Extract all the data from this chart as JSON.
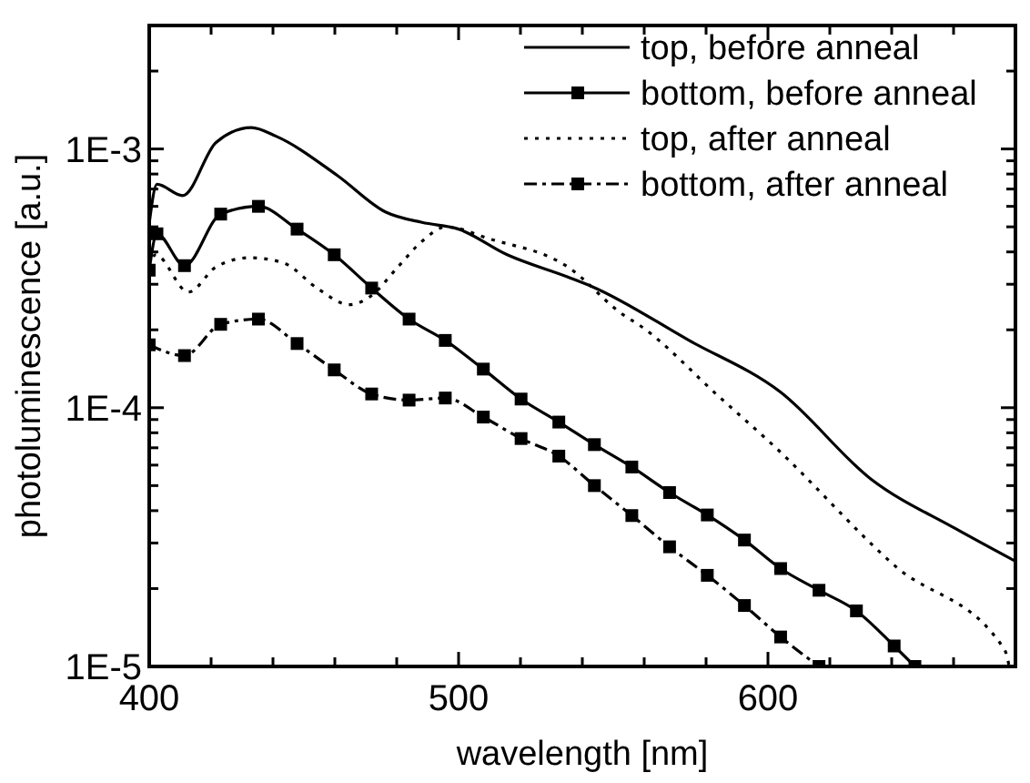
{
  "chart_data": {
    "type": "line",
    "xlabel": "wavelength [nm]",
    "ylabel": "photoluminescence [a.u.]",
    "log": "y",
    "grid": false,
    "legend": "top right",
    "xlim": [
      400,
      680
    ],
    "ylim": [
      1e-05,
      0.003
    ],
    "xticks": [
      400,
      {
        "value": 420,
        "label": null
      },
      {
        "value": 440,
        "label": null
      },
      {
        "value": 460,
        "label": null
      },
      {
        "value": 480,
        "label": null
      },
      500,
      {
        "value": 520,
        "label": null
      },
      {
        "value": 540,
        "label": null
      },
      {
        "value": 560,
        "label": null
      },
      {
        "value": 580,
        "label": null
      },
      600,
      {
        "value": 620,
        "label": null
      },
      {
        "value": 640,
        "label": null
      },
      {
        "value": 660,
        "label": null
      }
    ],
    "yticks": [
      {
        "value": 1e-05,
        "label": "1E-5"
      },
      {
        "value": 2e-05,
        "label": null
      },
      {
        "value": 3e-05,
        "label": null
      },
      {
        "value": 4e-05,
        "label": null
      },
      {
        "value": 5e-05,
        "label": null
      },
      {
        "value": 6e-05,
        "label": null
      },
      {
        "value": 7e-05,
        "label": null
      },
      {
        "value": 8e-05,
        "label": null
      },
      {
        "value": 9e-05,
        "label": null
      },
      {
        "value": 0.0001,
        "label": "1E-4"
      },
      {
        "value": 0.0002,
        "label": null
      },
      {
        "value": 0.0003,
        "label": null
      },
      {
        "value": 0.0004,
        "label": null
      },
      {
        "value": 0.0005,
        "label": null
      },
      {
        "value": 0.0006,
        "label": null
      },
      {
        "value": 0.0007,
        "label": null
      },
      {
        "value": 0.0008,
        "label": null
      },
      {
        "value": 0.0009,
        "label": null
      },
      {
        "value": 0.001,
        "label": "1E-3"
      },
      {
        "value": 0.002,
        "label": null
      },
      {
        "value": 0.003,
        "label": null
      }
    ],
    "series": [
      {
        "name": "top, before anneal",
        "color": "#000000",
        "line_style": "solid",
        "marker": "none",
        "x": [
          400,
          402.5,
          410.8,
          421.6,
          433,
          441,
          460.8,
          476.5,
          488.2,
          500,
          515.7,
          535.3,
          543.1,
          574.5,
          604,
          633.3,
          660.8,
          680
        ],
        "values": [
          0.000515,
          0.00073,
          0.00066,
          0.00106,
          0.00121,
          0.00112,
          0.00079,
          0.00057,
          0.00052,
          0.00049,
          0.00039,
          0.00032,
          0.000294,
          0.000182,
          0.000115,
          5.3e-05,
          3.4e-05,
          2.55e-05
        ]
      },
      {
        "name": "bottom, before anneal",
        "color": "#000000",
        "line_style": "solid",
        "marker": "square",
        "x": [
          400,
          402.5,
          411.4,
          423.1,
          435.3,
          447.8,
          459.8,
          471.9,
          484,
          495.7,
          508,
          520.2,
          532.4,
          543.9,
          556,
          568.2,
          580.4,
          592.4,
          604.1,
          616.5,
          628.6,
          640.8,
          647.5
        ],
        "values": [
          0.00034,
          0.00047,
          0.000354,
          0.00056,
          0.0006,
          0.00049,
          0.00039,
          0.00029,
          0.00022,
          0.000182,
          0.000141,
          0.000108,
          8.8e-05,
          7.2e-05,
          5.9e-05,
          4.7e-05,
          3.85e-05,
          3.08e-05,
          2.39e-05,
          1.97e-05,
          1.64e-05,
          1.2e-05,
          1e-05
        ]
      },
      {
        "name": "top, after anneal",
        "color": "#000000",
        "line_style": "dotted",
        "marker": "none",
        "x": [
          400,
          402,
          412.7,
          421.6,
          432.4,
          443.1,
          454.9,
          464.7,
          471.6,
          480.4,
          488.2,
          496,
          509.8,
          535.3,
          552.9,
          558.8,
          584.3,
          602,
          641.2,
          676.5,
          678
        ],
        "values": [
          0.00035,
          0.00039,
          0.00028,
          0.00035,
          0.00038,
          0.000364,
          0.000286,
          0.00025,
          0.00027,
          0.00035,
          0.00044,
          0.0005,
          0.00045,
          0.00035,
          0.00023,
          0.000207,
          0.00011,
          7.1e-05,
          2.44e-05,
          1.16e-05,
          1e-05
        ]
      },
      {
        "name": "bottom, after anneal",
        "color": "#000000",
        "line_style": "dashed",
        "marker": "square",
        "x": [
          400,
          411.4,
          423.1,
          435.3,
          447.8,
          459.8,
          471.9,
          484,
          495.7,
          508,
          520.2,
          532.4,
          543.9,
          556,
          568.2,
          580.4,
          592.4,
          604.1,
          616.5
        ],
        "values": [
          0.000175,
          0.000159,
          0.00021,
          0.00022,
          0.000177,
          0.00014,
          0.000113,
          0.000107,
          0.000109,
          9.2e-05,
          7.6e-05,
          6.5e-05,
          5e-05,
          3.83e-05,
          2.9e-05,
          2.25e-05,
          1.72e-05,
          1.3e-05,
          1e-05
        ]
      }
    ]
  }
}
